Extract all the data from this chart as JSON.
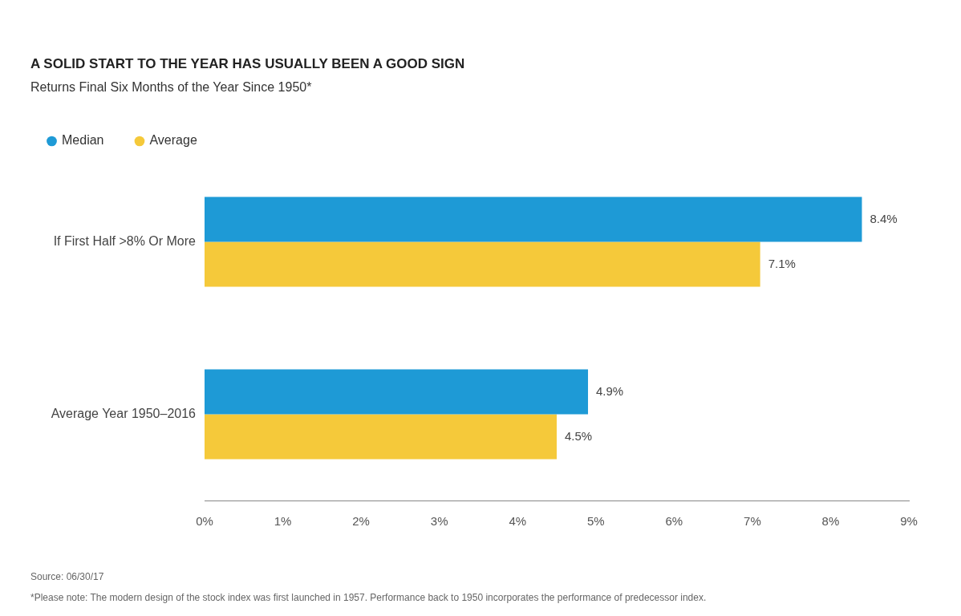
{
  "chart_data": {
    "type": "bar",
    "orientation": "horizontal",
    "title": "A SOLID START TO THE YEAR HAS USUALLY BEEN A GOOD SIGN",
    "subtitle": "Returns Final Six Months of the Year Since 1950*",
    "categories": [
      "If First Half >8% Or More",
      "Average Year 1950–2016"
    ],
    "series": [
      {
        "name": "Median",
        "color": "#1e9ad6",
        "values": [
          8.4,
          4.9
        ]
      },
      {
        "name": "Average",
        "color": "#f5c93a",
        "values": [
          7.1,
          4.5
        ]
      }
    ],
    "xlim": [
      0,
      9
    ],
    "xticks": [
      {
        "value": 0,
        "label": "0%"
      },
      {
        "value": 1,
        "label": "1%"
      },
      {
        "value": 2,
        "label": "2%"
      },
      {
        "value": 3,
        "label": "3%"
      },
      {
        "value": 4,
        "label": "4%"
      },
      {
        "value": 5,
        "label": "5%"
      },
      {
        "value": 6,
        "label": "6%"
      },
      {
        "value": 7,
        "label": "7%"
      },
      {
        "value": 8,
        "label": "8%"
      },
      {
        "value": 9,
        "label": "9%"
      }
    ],
    "value_labels": [
      "8.4%",
      "4.9%",
      "7.1%",
      "4.5%"
    ],
    "grid": false,
    "legend": "top left",
    "annotations": [
      "Source: 06/30/17",
      "*Please note: The modern design of the stock index was first launched in 1957. Performance back to 1950 incorporates the performance of predecessor index."
    ]
  }
}
